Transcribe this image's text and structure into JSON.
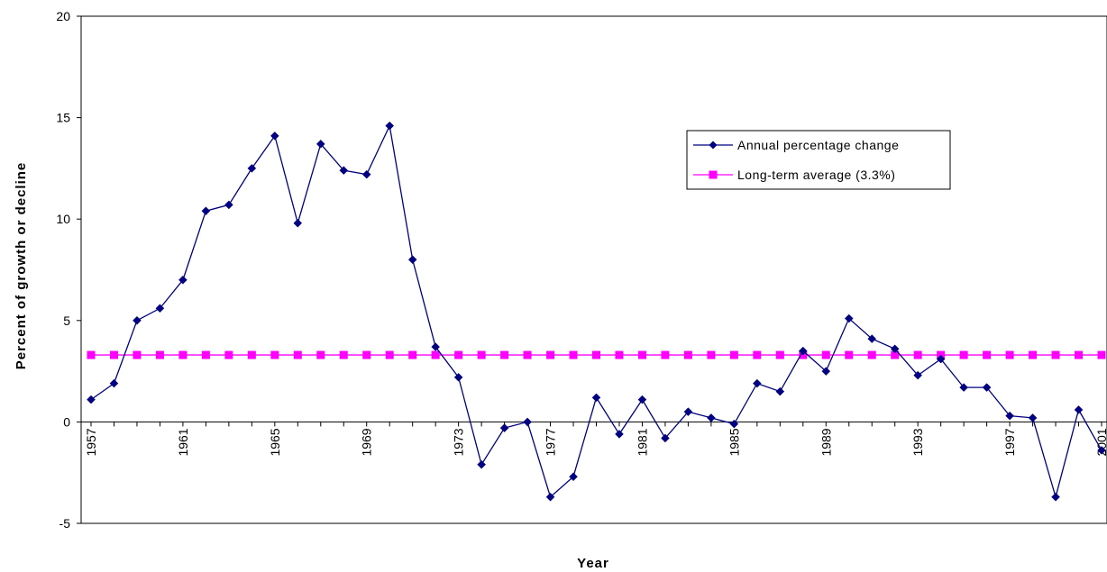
{
  "chart_data": {
    "type": "line",
    "xlabel": "Year",
    "ylabel": "Percent of growth or decline",
    "ylim": [
      -5,
      20
    ],
    "y_ticks": [
      -5,
      0,
      5,
      10,
      15,
      20
    ],
    "x": [
      1957,
      1958,
      1959,
      1960,
      1961,
      1962,
      1963,
      1964,
      1965,
      1966,
      1967,
      1968,
      1969,
      1970,
      1971,
      1972,
      1973,
      1974,
      1975,
      1976,
      1977,
      1978,
      1979,
      1980,
      1981,
      1982,
      1983,
      1984,
      1985,
      1986,
      1987,
      1988,
      1989,
      1990,
      1991,
      1992,
      1993,
      1994,
      1995,
      1996,
      1997,
      1998,
      1999,
      2000,
      2001
    ],
    "x_tick_labels": [
      "1957",
      "1961",
      "1965",
      "1969",
      "1973",
      "1977",
      "1981",
      "1985",
      "1989",
      "1993",
      "1997",
      "2001"
    ],
    "legend_position": "upper-right",
    "grid": false,
    "series": [
      {
        "name": "Annual percentage change",
        "color": "#000080",
        "marker": "diamond",
        "values": [
          1.1,
          1.9,
          5.0,
          5.6,
          7.0,
          10.4,
          10.7,
          12.5,
          14.1,
          9.8,
          13.7,
          12.4,
          12.2,
          14.6,
          8.0,
          3.7,
          2.2,
          -2.1,
          -0.3,
          0.0,
          -3.7,
          -2.7,
          1.2,
          -0.6,
          1.1,
          -0.8,
          0.5,
          0.2,
          -0.1,
          1.9,
          1.5,
          3.5,
          2.5,
          5.1,
          4.1,
          3.6,
          2.3,
          3.1,
          1.7,
          1.7,
          0.3,
          0.2,
          -3.7,
          0.6,
          -1.4
        ]
      },
      {
        "name": "Long-term average (3.3%)",
        "color": "#ff00ff",
        "marker": "square",
        "values": [
          3.3,
          3.3,
          3.3,
          3.3,
          3.3,
          3.3,
          3.3,
          3.3,
          3.3,
          3.3,
          3.3,
          3.3,
          3.3,
          3.3,
          3.3,
          3.3,
          3.3,
          3.3,
          3.3,
          3.3,
          3.3,
          3.3,
          3.3,
          3.3,
          3.3,
          3.3,
          3.3,
          3.3,
          3.3,
          3.3,
          3.3,
          3.3,
          3.3,
          3.3,
          3.3,
          3.3,
          3.3,
          3.3,
          3.3,
          3.3,
          3.3,
          3.3,
          3.3,
          3.3,
          3.3
        ]
      }
    ]
  }
}
